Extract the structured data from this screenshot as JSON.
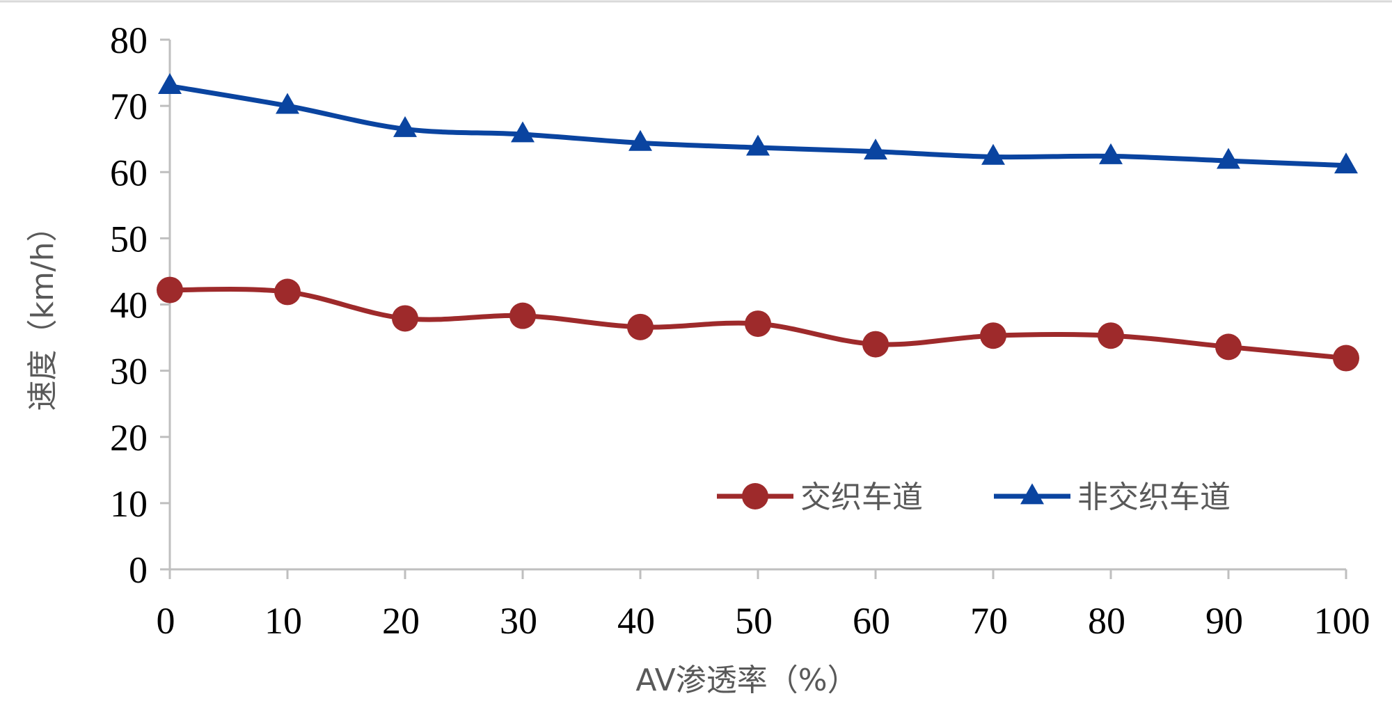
{
  "chart_data": {
    "type": "line",
    "title": "",
    "xlabel": "AV渗透率（%）",
    "ylabel": "速度（km/h）",
    "x": [
      0,
      10,
      20,
      30,
      40,
      50,
      60,
      70,
      80,
      90,
      100
    ],
    "xticks": [
      "0",
      "10",
      "20",
      "30",
      "40",
      "50",
      "60",
      "70",
      "80",
      "90",
      "100"
    ],
    "yticks": [
      "0",
      "10",
      "20",
      "30",
      "40",
      "50",
      "60",
      "70",
      "80"
    ],
    "xlim": [
      0,
      100
    ],
    "ylim": [
      0,
      80
    ],
    "grid": false,
    "legend_position": "bottom-right",
    "series": [
      {
        "name": "交织车道",
        "marker": "circle",
        "color": "#9e2a2b",
        "values": [
          42.2,
          41.9,
          37.9,
          38.3,
          36.6,
          37.1,
          34.0,
          35.3,
          35.3,
          33.6,
          31.9
        ]
      },
      {
        "name": "非交织车道",
        "marker": "triangle",
        "color": "#0a44a0",
        "values": [
          73.0,
          70.0,
          66.5,
          65.7,
          64.4,
          63.7,
          63.1,
          62.3,
          62.4,
          61.7,
          61.0
        ]
      }
    ]
  },
  "colors": {
    "axis": "#bfbfbf",
    "frame": "#d9d9d9"
  }
}
